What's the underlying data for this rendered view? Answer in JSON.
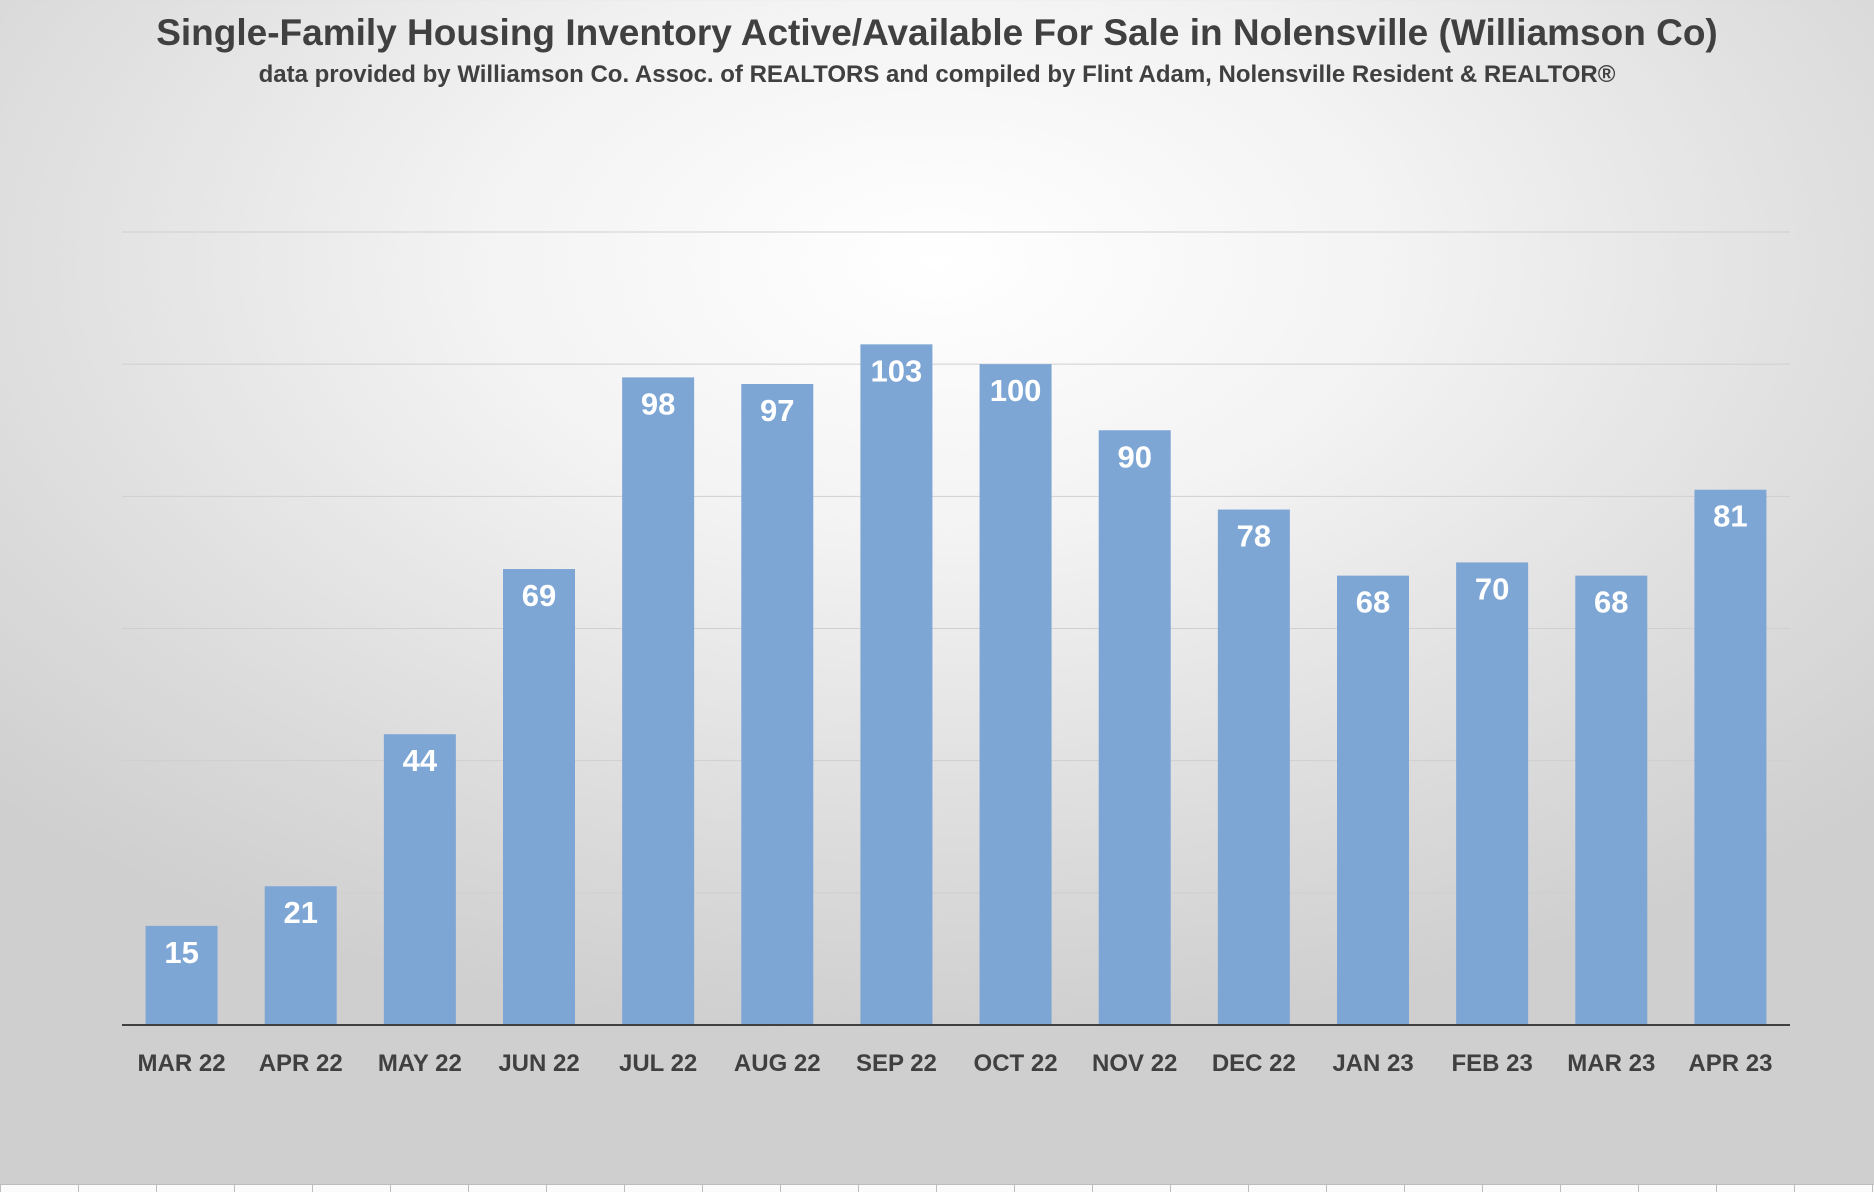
{
  "chart_data": {
    "type": "bar",
    "title": "Single-Family Housing Inventory Active/Available For Sale in Nolensville (Williamson Co)",
    "subtitle": "data provided by Williamson Co. Assoc. of REALTORS  and compiled by Flint Adam, Nolensville Resident & REALTOR®",
    "categories": [
      "MAR 22",
      "APR 22",
      "MAY 22",
      "JUN 22",
      "JUL 22",
      "AUG 22",
      "SEP 22",
      "OCT 22",
      "NOV 22",
      "DEC 22",
      "JAN 23",
      "FEB 23",
      "MAR 23",
      "APR 23"
    ],
    "values": [
      15,
      21,
      44,
      69,
      98,
      97,
      103,
      100,
      90,
      78,
      68,
      70,
      68,
      81
    ],
    "xlabel": "",
    "ylabel": "",
    "ylim": [
      0,
      120
    ],
    "grid": true,
    "legend": "none",
    "bar_color": "#7ea6d5",
    "label_color": "#ffffff",
    "axis_text_color": "#404040"
  }
}
